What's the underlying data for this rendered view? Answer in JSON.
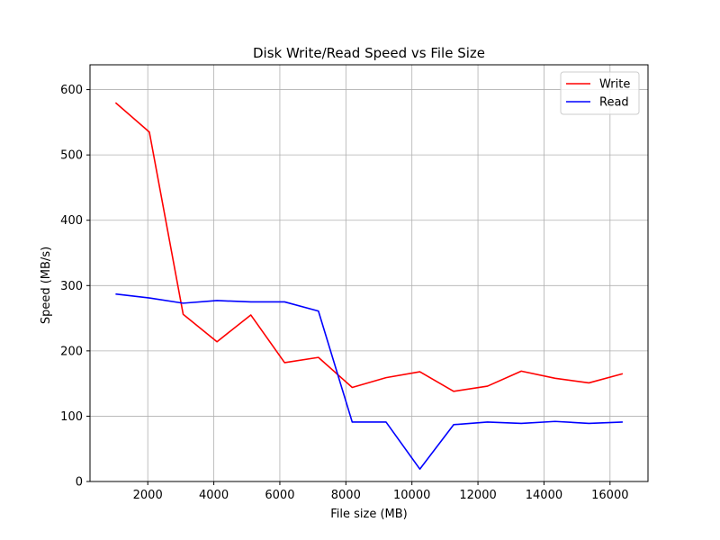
{
  "chart_data": {
    "type": "line",
    "title": "Disk Write/Read Speed vs File Size",
    "xlabel": "File size (MB)",
    "ylabel": "Speed (MB/s)",
    "xlim": [
      250,
      17150
    ],
    "ylim": [
      0,
      638
    ],
    "xticks": [
      2000,
      4000,
      6000,
      8000,
      10000,
      12000,
      14000,
      16000
    ],
    "yticks": [
      0,
      100,
      200,
      300,
      400,
      500,
      600
    ],
    "grid": true,
    "legend_position": "top-right",
    "x": [
      1024,
      2048,
      3072,
      4096,
      5120,
      6144,
      7168,
      8192,
      9216,
      10240,
      11264,
      12288,
      13312,
      14336,
      15360,
      16384
    ],
    "series": [
      {
        "name": "Write",
        "color": "#ff0000",
        "values": [
          580,
          535,
          256,
          214,
          255,
          182,
          190,
          144,
          159,
          168,
          138,
          146,
          169,
          158,
          151,
          165
        ]
      },
      {
        "name": "Read",
        "color": "#0000ff",
        "values": [
          287,
          281,
          273,
          277,
          275,
          275,
          261,
          91,
          91,
          19,
          87,
          91,
          89,
          92,
          89,
          91
        ]
      }
    ]
  }
}
